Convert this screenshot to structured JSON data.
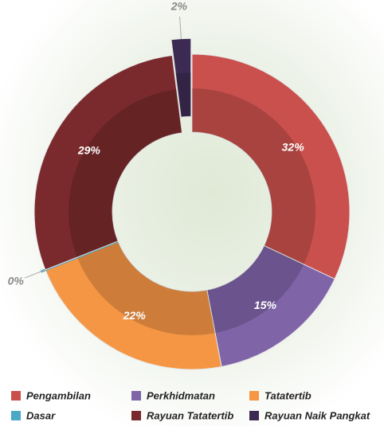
{
  "chart_data": {
    "type": "donut",
    "categories": [
      "Pengambilan",
      "Perkhidmatan",
      "Tatatertib",
      "Dasar",
      "Rayuan Tatatertib",
      "Rayuan Naik Pangkat"
    ],
    "values": [
      32,
      15,
      22,
      0,
      29,
      2
    ],
    "value_labels": [
      "32%",
      "15%",
      "22%",
      "0%",
      "29%",
      "2%"
    ],
    "colors": [
      "#c9504c",
      "#8064a8",
      "#f59645",
      "#4aa9c4",
      "#7a2a2c",
      "#3d2a52"
    ],
    "explode": [
      0,
      0,
      0,
      0,
      0,
      0.1
    ],
    "legend": "bottom"
  }
}
